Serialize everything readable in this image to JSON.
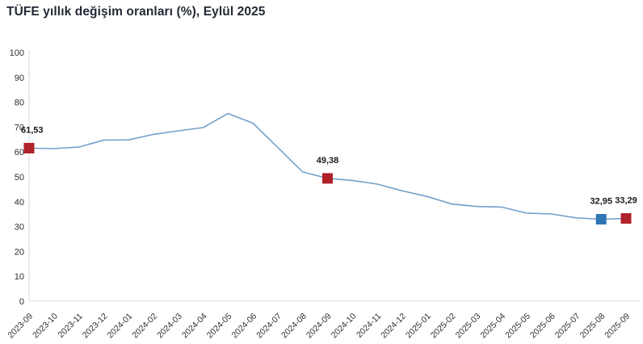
{
  "title": "TÜFE yıllık değişim oranları (%), Eylül 2025",
  "chart_data": {
    "type": "line",
    "title": "TÜFE yıllık değişim oranları (%), Eylül 2025",
    "x": [
      "2023-09",
      "2023-10",
      "2023-11",
      "2023-12",
      "2024-01",
      "2024-02",
      "2024-03",
      "2024-04",
      "2024-05",
      "2024-06",
      "2024-07",
      "2024-08",
      "2024-09",
      "2024-10",
      "2024-11",
      "2024-12",
      "2025-01",
      "2025-02",
      "2025-03",
      "2025-04",
      "2025-05",
      "2025-06",
      "2025-07",
      "2025-08",
      "2025-09"
    ],
    "series": [
      {
        "name": "TÜFE yıllık değişim oranı (%)",
        "values": [
          61.53,
          61.36,
          61.98,
          64.77,
          64.86,
          67.07,
          68.5,
          69.8,
          75.45,
          71.6,
          61.78,
          51.97,
          49.38,
          48.58,
          47.09,
          44.38,
          42.12,
          39.05,
          38.1,
          37.86,
          35.41,
          35.05,
          33.52,
          32.95,
          33.29
        ]
      }
    ],
    "ylim": [
      0,
      100
    ],
    "ytick_step": 10,
    "yticks": [
      "0",
      "10",
      "20",
      "30",
      "40",
      "50",
      "60",
      "70",
      "80",
      "90",
      "100"
    ],
    "grid": false,
    "legend": "none",
    "line_color": "#74a0cc",
    "axis_color": "#d9d9d9",
    "tick_label_color": "#2e2e2e",
    "data_label_color": "#1a1a1a",
    "annotations": [
      {
        "x": "2023-09",
        "value": 61.53,
        "label": "61,53",
        "marker_color": "#b02128",
        "label_align": "left"
      },
      {
        "x": "2024-09",
        "value": 49.38,
        "label": "49,38",
        "marker_color": "#b02128",
        "label_align": "center"
      },
      {
        "x": "2025-08",
        "value": 32.95,
        "label": "32,95",
        "marker_color": "#2e75b6",
        "label_align": "center"
      },
      {
        "x": "2025-09",
        "value": 33.29,
        "label": "33,29",
        "marker_color": "#b02128",
        "label_align": "center"
      }
    ]
  }
}
